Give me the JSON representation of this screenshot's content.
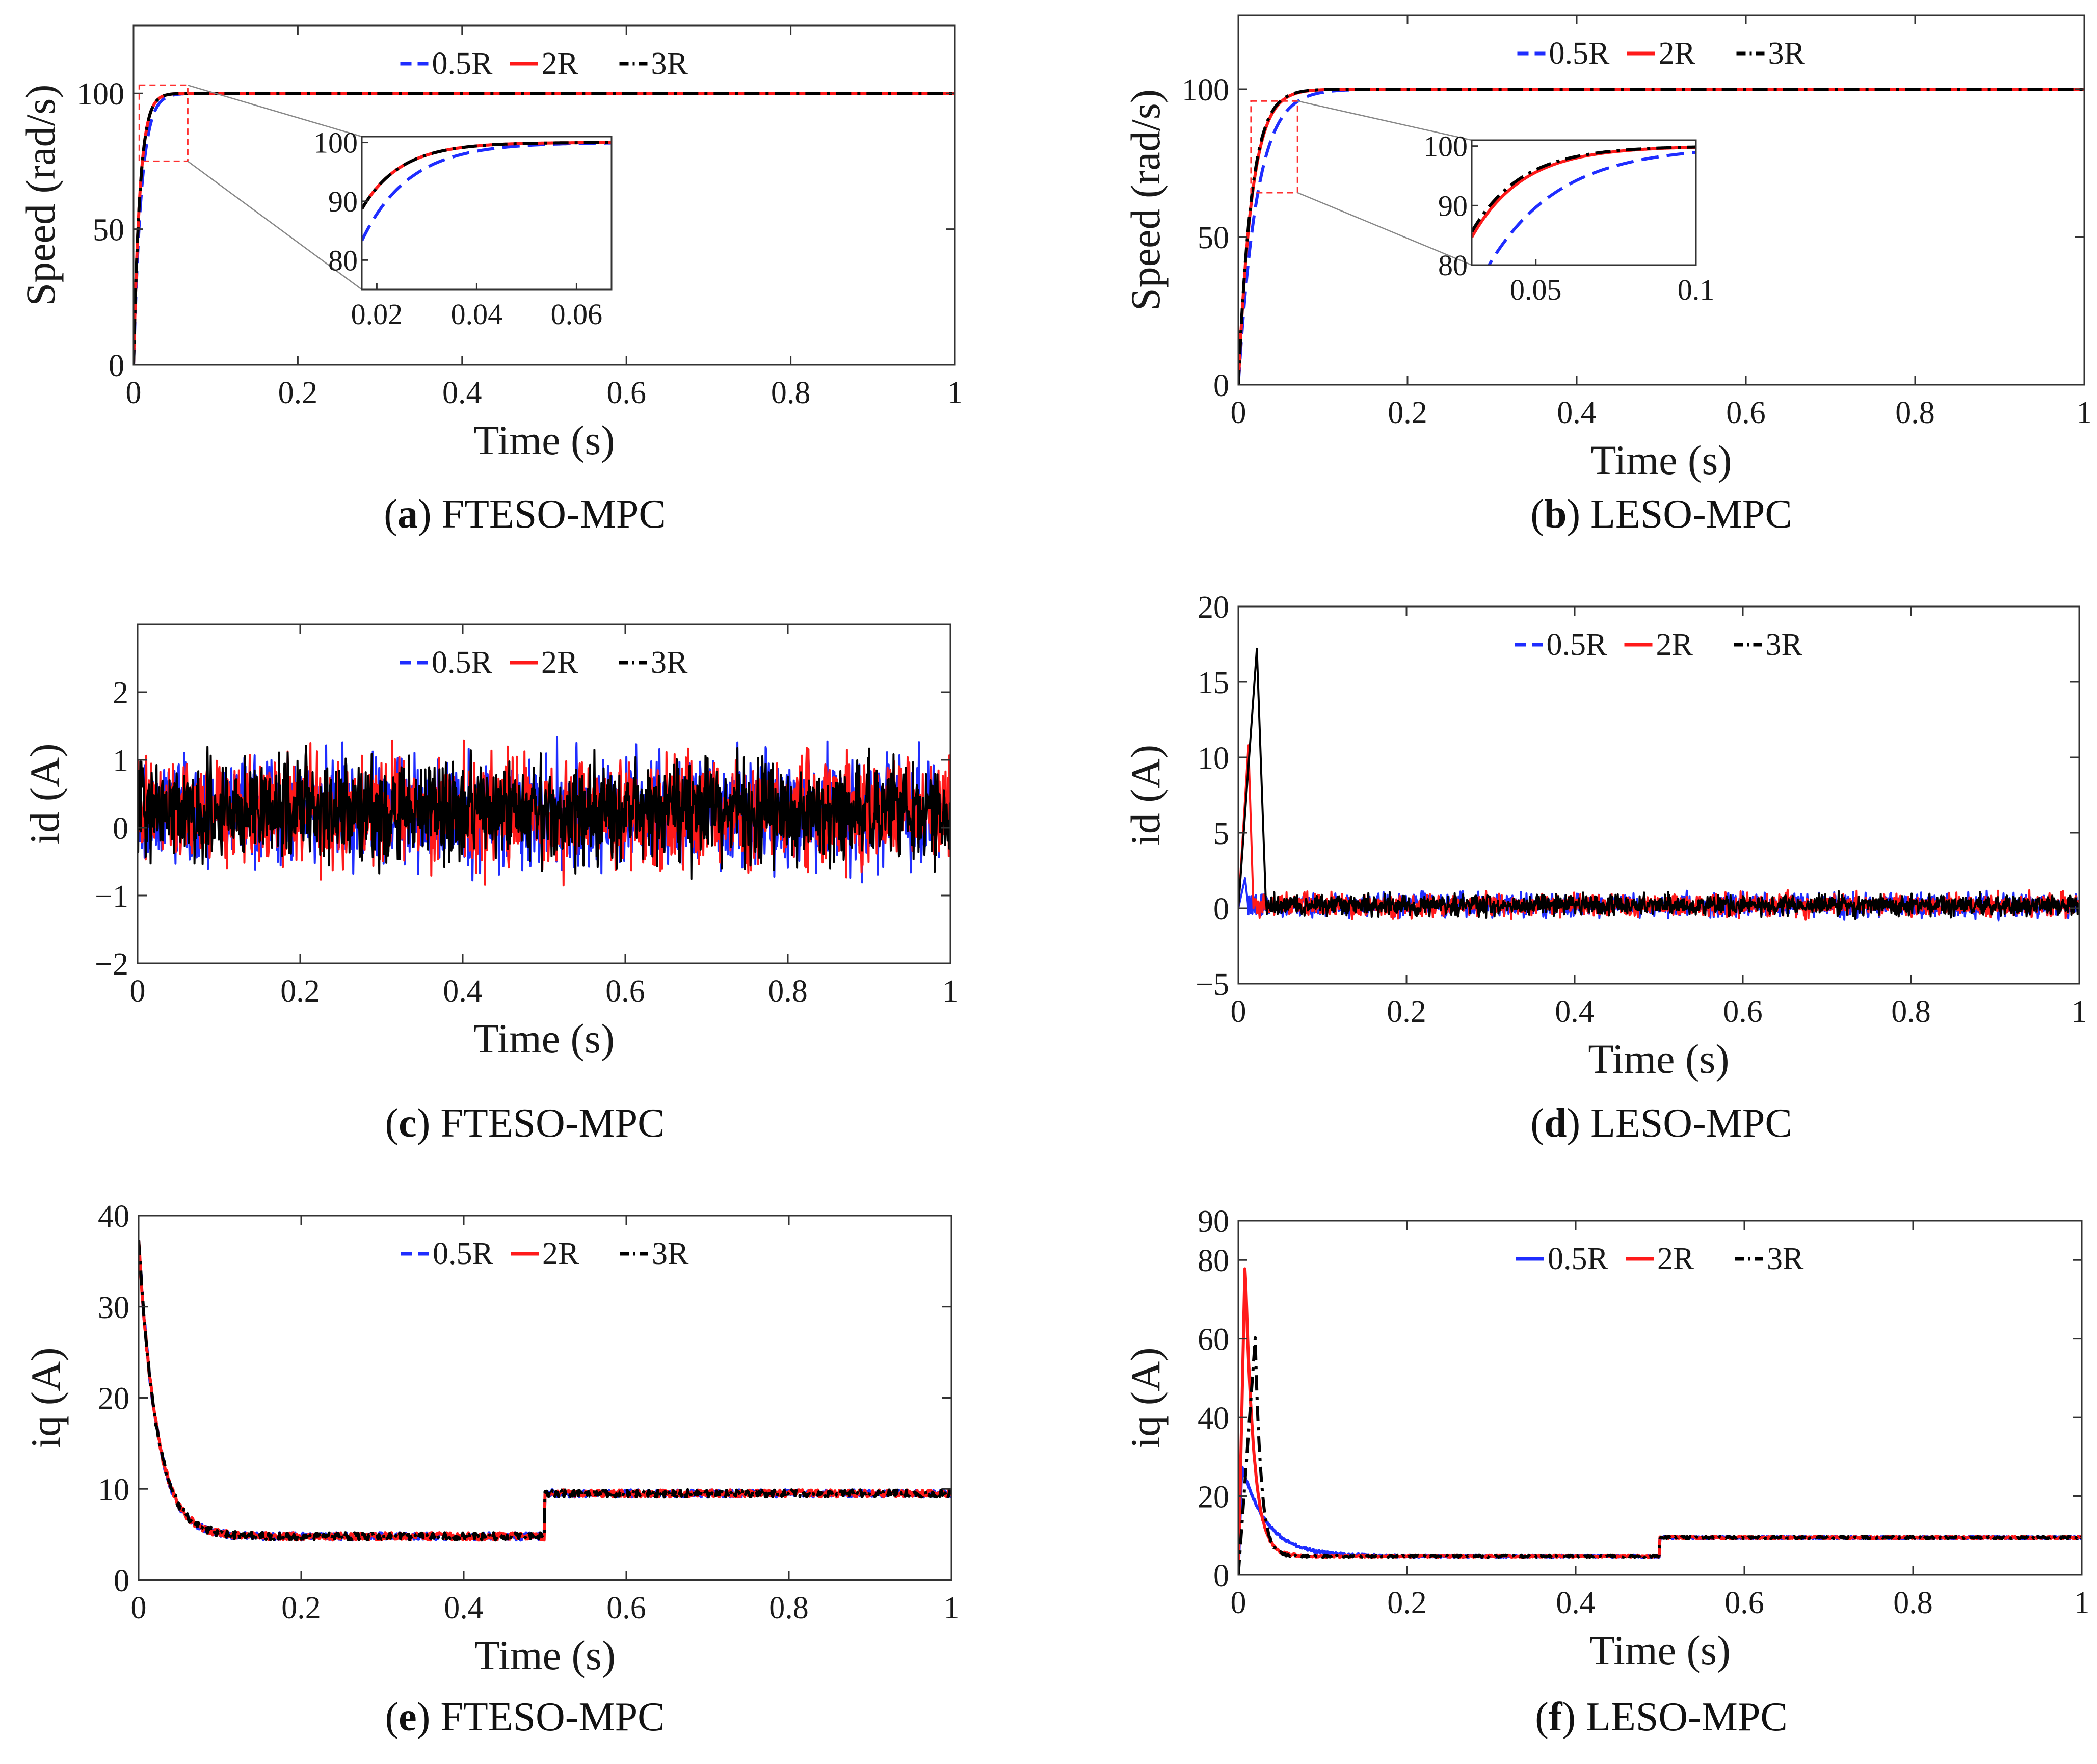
{
  "colors": {
    "blue": "#1f2dff",
    "red": "#ff1a1a",
    "black": "#000000",
    "zoom_box": "#ff3030",
    "connector": "#888888"
  },
  "chart_data": [
    {
      "id": "a",
      "type": "line",
      "caption_letter": "a",
      "caption_text": " FTESO-MPC",
      "xlabel": "Time (s)",
      "ylabel": "Speed (rad/s)",
      "xlim": [
        0,
        1
      ],
      "ylim": [
        0,
        125
      ],
      "xticks": [
        0,
        0.2,
        0.4,
        0.6,
        0.8,
        1
      ],
      "xtick_labels": [
        "0",
        "0.2",
        "0.4",
        "0.6",
        "0.8",
        "1"
      ],
      "yticks": [
        0,
        50,
        100
      ],
      "ytick_labels": [
        "0",
        "50",
        "100"
      ],
      "grid": false,
      "legend": "top-center",
      "series": [
        {
          "name": "0.5R",
          "color": "blue",
          "dash": "dash",
          "response": {
            "kind": "rise",
            "final": 100,
            "tau": 0.0095
          }
        },
        {
          "name": "2R",
          "color": "red",
          "dash": "solid",
          "response": {
            "kind": "rise",
            "final": 100,
            "tau": 0.0078
          }
        },
        {
          "name": "3R",
          "color": "black",
          "dash": "dashdot",
          "response": {
            "kind": "rise",
            "final": 100,
            "tau": 0.0078
          }
        }
      ],
      "inset": {
        "xlim": [
          0.017,
          0.067
        ],
        "ylim": [
          75,
          101
        ],
        "xticks": [
          0.02,
          0.04,
          0.06
        ],
        "xtick_labels": [
          "0.02",
          "0.04",
          "0.06"
        ],
        "yticks": [
          80,
          90,
          100
        ],
        "ytick_labels": [
          "80",
          "90",
          "100"
        ],
        "zoom_region": {
          "x": [
            0.007,
            0.066
          ],
          "y": [
            75,
            103
          ]
        }
      }
    },
    {
      "id": "b",
      "type": "line",
      "caption_letter": "b",
      "caption_text": " LESO-MPC",
      "xlabel": "Time (s)",
      "ylabel": "Speed (rad/s)",
      "xlim": [
        0,
        1
      ],
      "ylim": [
        0,
        125
      ],
      "xticks": [
        0,
        0.2,
        0.4,
        0.6,
        0.8,
        1
      ],
      "xtick_labels": [
        "0",
        "0.2",
        "0.4",
        "0.6",
        "0.8",
        "1"
      ],
      "yticks": [
        0,
        50,
        100
      ],
      "ytick_labels": [
        "0",
        "50",
        "100"
      ],
      "grid": false,
      "legend": "top-center",
      "series": [
        {
          "name": "0.5R",
          "color": "blue",
          "dash": "dash",
          "response": {
            "kind": "rise",
            "final": 100,
            "tau": 0.022
          }
        },
        {
          "name": "2R",
          "color": "red",
          "dash": "solid",
          "response": {
            "kind": "rise",
            "final": 100,
            "tau": 0.016
          }
        },
        {
          "name": "3R",
          "color": "black",
          "dash": "dashdot",
          "response": {
            "kind": "rise",
            "final": 100,
            "tau": 0.0155
          }
        }
      ],
      "inset": {
        "xlim": [
          0.03,
          0.1
        ],
        "ylim": [
          80,
          101
        ],
        "xticks": [
          0.05,
          0.1
        ],
        "xtick_labels": [
          "0.05",
          "0.1"
        ],
        "yticks": [
          80,
          90,
          100
        ],
        "ytick_labels": [
          "80",
          "90",
          "100"
        ],
        "zoom_region": {
          "x": [
            0.015,
            0.07
          ],
          "y": [
            65,
            96
          ]
        }
      }
    },
    {
      "id": "c",
      "type": "line",
      "caption_letter": "c",
      "caption_text": " FTESO-MPC",
      "xlabel": "Time (s)",
      "ylabel": "id (A)",
      "xlim": [
        0,
        1
      ],
      "ylim": [
        -2,
        3
      ],
      "xticks": [
        0,
        0.2,
        0.4,
        0.6,
        0.8,
        1
      ],
      "xtick_labels": [
        "0",
        "0.2",
        "0.4",
        "0.6",
        "0.8",
        "1"
      ],
      "yticks": [
        -2,
        -1,
        0,
        1,
        2
      ],
      "ytick_labels": [
        "−2",
        "−1",
        "0",
        "1",
        "2"
      ],
      "grid": false,
      "legend": "top-center",
      "series": [
        {
          "name": "0.5R",
          "color": "blue",
          "dash": "dash",
          "response": {
            "kind": "noise",
            "mean": 0.25,
            "amp": 1.15
          }
        },
        {
          "name": "2R",
          "color": "red",
          "dash": "solid",
          "response": {
            "kind": "noise",
            "mean": 0.25,
            "amp": 1.15
          }
        },
        {
          "name": "3R",
          "color": "black",
          "dash": "dashdot",
          "response": {
            "kind": "noise",
            "mean": 0.25,
            "amp": 1.05
          }
        }
      ]
    },
    {
      "id": "d",
      "type": "line",
      "caption_letter": "d",
      "caption_text": " LESO-MPC",
      "xlabel": "Time (s)",
      "ylabel": "id (A)",
      "xlim": [
        0,
        1
      ],
      "ylim": [
        -5,
        20
      ],
      "xticks": [
        0,
        0.2,
        0.4,
        0.6,
        0.8,
        1
      ],
      "xtick_labels": [
        "0",
        "0.2",
        "0.4",
        "0.6",
        "0.8",
        "1"
      ],
      "yticks": [
        -5,
        0,
        5,
        10,
        15,
        20
      ],
      "ytick_labels": [
        "−5",
        "0",
        "5",
        "10",
        "15",
        "20"
      ],
      "grid": false,
      "legend": "top-center",
      "series": [
        {
          "name": "0.5R",
          "color": "blue",
          "dash": "dash",
          "response": {
            "kind": "spike_noise",
            "mean": 0.2,
            "amp": 1.1,
            "spike_t": 0.008,
            "spike_v": 2.0
          }
        },
        {
          "name": "2R",
          "color": "red",
          "dash": "solid",
          "response": {
            "kind": "spike_noise",
            "mean": 0.2,
            "amp": 1.1,
            "spike_t": 0.012,
            "spike_v": 10.8
          }
        },
        {
          "name": "3R",
          "color": "black",
          "dash": "dashdot",
          "response": {
            "kind": "spike_noise",
            "mean": 0.2,
            "amp": 1.0,
            "spike_t": 0.022,
            "spike_v": 17.2
          }
        }
      ]
    },
    {
      "id": "e",
      "type": "line",
      "caption_letter": "e",
      "caption_text": " FTESO-MPC",
      "xlabel": "Time (s)",
      "ylabel": "iq (A)",
      "xlim": [
        0,
        1
      ],
      "ylim": [
        0,
        40
      ],
      "xticks": [
        0,
        0.2,
        0.4,
        0.6,
        0.8,
        1
      ],
      "xtick_labels": [
        "0",
        "0.2",
        "0.4",
        "0.6",
        "0.8",
        "1"
      ],
      "yticks": [
        0,
        10,
        20,
        30,
        40
      ],
      "ytick_labels": [
        "0",
        "10",
        "20",
        "30",
        "40"
      ],
      "grid": false,
      "legend": "top-center",
      "series": [
        {
          "name": "0.5R",
          "color": "blue",
          "dash": "dash",
          "response": {
            "kind": "decay_step",
            "peak": 37.5,
            "tau": 0.022,
            "base": 4.8,
            "step_t": 0.5,
            "step_v": 9.5,
            "ripple": 0.8
          }
        },
        {
          "name": "2R",
          "color": "red",
          "dash": "solid",
          "response": {
            "kind": "decay_step",
            "peak": 37.5,
            "tau": 0.022,
            "base": 4.8,
            "step_t": 0.5,
            "step_v": 9.5,
            "ripple": 0.8
          }
        },
        {
          "name": "3R",
          "color": "black",
          "dash": "dashdot",
          "response": {
            "kind": "decay_step",
            "peak": 37.5,
            "tau": 0.022,
            "base": 4.8,
            "step_t": 0.5,
            "step_v": 9.5,
            "ripple": 0.8
          }
        }
      ]
    },
    {
      "id": "f",
      "type": "line",
      "caption_letter": "f",
      "caption_text": " LESO-MPC",
      "xlabel": "Time (s)",
      "ylabel": "iq (A)",
      "xlim": [
        0,
        1
      ],
      "ylim": [
        0,
        90
      ],
      "xticks": [
        0,
        0.2,
        0.4,
        0.6,
        0.8,
        1
      ],
      "xtick_labels": [
        "0",
        "0.2",
        "0.4",
        "0.6",
        "0.8",
        "1"
      ],
      "yticks": [
        0,
        20,
        40,
        60,
        80,
        90
      ],
      "ytick_labels": [
        "0",
        "20",
        "40",
        "60",
        "80",
        "90"
      ],
      "grid": false,
      "legend": "top-center",
      "series": [
        {
          "name": "0.5R",
          "color": "blue",
          "dash": "solid",
          "response": {
            "kind": "peak_decay_step",
            "peak_t": 0.004,
            "peak": 28,
            "tau": 0.03,
            "base": 4.8,
            "step_t": 0.5,
            "step_v": 9.5,
            "ripple": 0.6
          }
        },
        {
          "name": "2R",
          "color": "red",
          "dash": "solid",
          "response": {
            "kind": "peak_decay_step",
            "peak_t": 0.008,
            "peak": 80,
            "tau": 0.01,
            "base": 4.8,
            "step_t": 0.5,
            "step_v": 9.5,
            "ripple": 0.6
          }
        },
        {
          "name": "3R",
          "color": "black",
          "dash": "dashdot",
          "response": {
            "kind": "peak_decay_step",
            "peak_t": 0.02,
            "peak": 60,
            "tau": 0.007,
            "base": 4.8,
            "step_t": 0.5,
            "step_v": 9.5,
            "ripple": 0.6
          }
        }
      ]
    }
  ]
}
